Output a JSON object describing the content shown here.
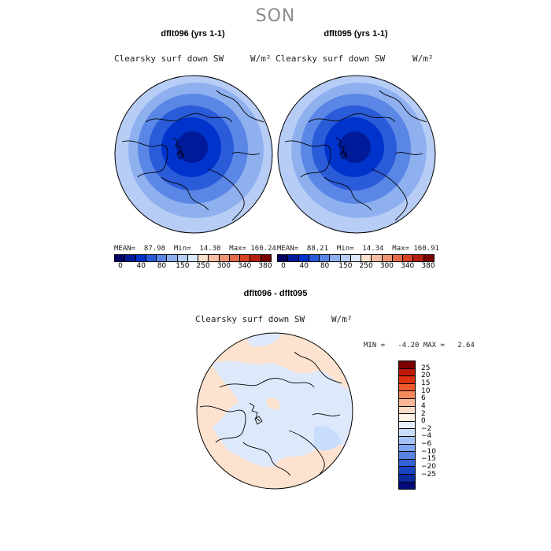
{
  "season": "SON",
  "panels": [
    {
      "title": "dflt096 (yrs 1-1)",
      "variable": "Clearsky surf down SW",
      "units": "W/m²",
      "stats": "MEAN=  87.98  Min=  14.30  Max= 160.24"
    },
    {
      "title": "dflt095 (yrs 1-1)",
      "variable": "Clearsky surf down SW",
      "units": "W/m²",
      "stats": "MEAN=  88.21  Min=  14.34  Max= 160.91"
    }
  ],
  "diff_panel": {
    "title": "dflt096 - dflt095",
    "variable": "Clearsky surf down SW",
    "units": "W/m²",
    "stats": "MIN =   -4.20 MAX =   2.64"
  },
  "colorbar_top": {
    "colors": [
      "#000066",
      "#001a99",
      "#0033cc",
      "#2a5bd9",
      "#5a87e6",
      "#8fb0ef",
      "#b7cdf6",
      "#dce8fb",
      "#fbe0d0",
      "#f6bfa3",
      "#ef9576",
      "#e66a4a",
      "#d84324",
      "#b51f10",
      "#7a0000"
    ],
    "tick_labels": [
      "0",
      "40",
      "80",
      "150",
      "250",
      "300",
      "340",
      "380"
    ]
  },
  "colorbar_diff": {
    "colors": [
      "#7a0000",
      "#c01a0a",
      "#dc3212",
      "#ef5a2c",
      "#f58b5c",
      "#f9b796",
      "#fcdcc6",
      "#fff3e6",
      "#e6f0ff",
      "#c8dcfb",
      "#a5c3f6",
      "#7ea5ee",
      "#5884e2",
      "#3362d4",
      "#1a44c2",
      "#0a2a9e",
      "#000a7a"
    ],
    "tick_labels": [
      "25",
      "20",
      "15",
      "10",
      "6",
      "4",
      "2",
      "0",
      "−2",
      "−4",
      "−6",
      "−10",
      "−15",
      "−20",
      "−25"
    ]
  },
  "chart_data": [
    {
      "type": "heatmap",
      "title": "dflt096 (yrs 1-1)",
      "variable": "Clearsky surf down SW",
      "units": "W/m²",
      "projection": "polar stereographic (north)",
      "mean": 87.98,
      "min": 14.3,
      "max": 160.24,
      "contour_levels": [
        0,
        40,
        80,
        150,
        250,
        300,
        340,
        380
      ]
    },
    {
      "type": "heatmap",
      "title": "dflt095 (yrs 1-1)",
      "variable": "Clearsky surf down SW",
      "units": "W/m²",
      "projection": "polar stereographic (north)",
      "mean": 88.21,
      "min": 14.34,
      "max": 160.91,
      "contour_levels": [
        0,
        40,
        80,
        150,
        250,
        300,
        340,
        380
      ]
    },
    {
      "type": "heatmap",
      "title": "dflt096 - dflt095",
      "variable": "Clearsky surf down SW",
      "units": "W/m²",
      "projection": "polar stereographic (north)",
      "min": -4.2,
      "max": 2.64,
      "contour_levels": [
        -25,
        -20,
        -15,
        -10,
        -6,
        -4,
        -2,
        0,
        2,
        4,
        6,
        10,
        15,
        20,
        25
      ]
    }
  ]
}
